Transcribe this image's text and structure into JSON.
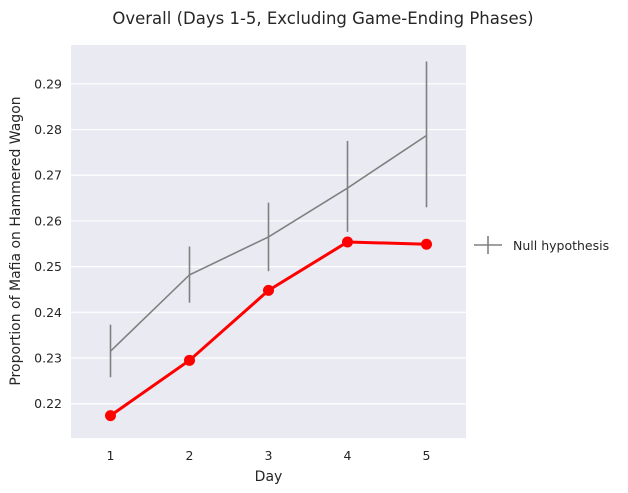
{
  "chart_data": {
    "type": "line",
    "title": "Overall (Days 1-5, Excluding Game-Ending Phases)",
    "xlabel": "Day",
    "ylabel": "Proportion of Mafia on Hammered Wagon",
    "categories": [
      "1",
      "2",
      "3",
      "4",
      "5"
    ],
    "ylim": [
      0.2125,
      0.2985
    ],
    "yticks": [
      "0.22",
      "0.23",
      "0.24",
      "0.25",
      "0.26",
      "0.27",
      "0.28",
      "0.29"
    ],
    "grid": true,
    "legend_position": "right",
    "series": [
      {
        "name": "",
        "color": "#ff0000",
        "marker": "circle",
        "values": [
          0.2174,
          0.2295,
          0.2448,
          0.2554,
          0.2549
        ]
      },
      {
        "name": "Null hypothesis",
        "color": "#808080",
        "marker": "none",
        "values": [
          0.2315,
          0.2482,
          0.2565,
          0.2672,
          0.2787
        ],
        "error_low": [
          0.2258,
          0.2421,
          0.249,
          0.2576,
          0.263
        ],
        "error_high": [
          0.2373,
          0.2544,
          0.264,
          0.2775,
          0.2949
        ]
      }
    ]
  }
}
